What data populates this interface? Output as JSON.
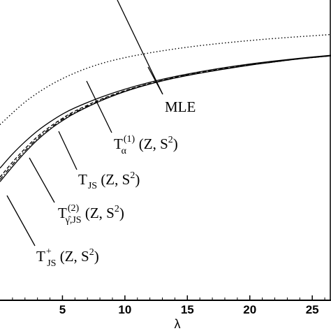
{
  "chart_data": {
    "type": "line",
    "title": "",
    "xlabel": "λ",
    "ylabel": "",
    "xlim": [
      0,
      26.5
    ],
    "ylim": [
      0,
      1.0
    ],
    "x_ticks": [
      5,
      10,
      15,
      20,
      25
    ],
    "x_tick_labels": [
      "5",
      "10",
      "15",
      "20",
      "25"
    ],
    "grid": false,
    "legend": "none",
    "series": [
      {
        "key": "mle",
        "style": "dotted",
        "x": [
          0,
          2,
          4,
          6,
          8,
          10,
          12,
          14,
          16,
          18,
          20,
          22,
          24,
          26.5
        ],
        "y": [
          0.585,
          0.66,
          0.716,
          0.757,
          0.787,
          0.808,
          0.824,
          0.837,
          0.848,
          0.857,
          0.865,
          0.872,
          0.878,
          0.885
        ]
      },
      {
        "key": "t_alpha",
        "style": "solid",
        "x": [
          0,
          1,
          2,
          3,
          4,
          5,
          6,
          8,
          10,
          12,
          14,
          16,
          18,
          20,
          22,
          24,
          26.5
        ],
        "y": [
          0.44,
          0.487,
          0.528,
          0.564,
          0.594,
          0.62,
          0.641,
          0.675,
          0.703,
          0.726,
          0.745,
          0.761,
          0.775,
          0.787,
          0.797,
          0.806,
          0.816
        ]
      },
      {
        "key": "t_js",
        "style": "dashed",
        "x": [
          0,
          1,
          2,
          3,
          4,
          5,
          6,
          8,
          10,
          12,
          14,
          16,
          18,
          20,
          22,
          24,
          26.5
        ],
        "y": [
          0.41,
          0.46,
          0.505,
          0.545,
          0.578,
          0.606,
          0.63,
          0.668,
          0.698,
          0.722,
          0.742,
          0.758,
          0.772,
          0.785,
          0.795,
          0.805,
          0.815
        ]
      },
      {
        "key": "t_gamma_js",
        "style": "dashdot",
        "x": [
          0,
          1,
          2,
          3,
          4,
          5,
          6,
          8,
          10,
          12,
          14,
          16,
          18,
          20,
          22,
          24,
          26.5
        ],
        "y": [
          0.402,
          0.452,
          0.498,
          0.539,
          0.573,
          0.602,
          0.626,
          0.665,
          0.696,
          0.721,
          0.741,
          0.757,
          0.771,
          0.784,
          0.794,
          0.804,
          0.814
        ]
      },
      {
        "key": "t_js_plus",
        "style": "solid",
        "x": [
          0,
          1,
          2,
          3,
          4,
          5,
          6,
          8,
          10,
          12,
          14,
          16,
          18,
          20,
          22,
          24,
          26.5
        ],
        "y": [
          0.395,
          0.445,
          0.492,
          0.534,
          0.569,
          0.598,
          0.623,
          0.663,
          0.695,
          0.72,
          0.74,
          0.756,
          0.77,
          0.783,
          0.794,
          0.804,
          0.814
        ]
      }
    ],
    "annotations": [
      {
        "key": "mle",
        "text": "MLE"
      },
      {
        "key": "t_alpha",
        "text_main": "T",
        "sub": "α",
        "sup": "(1)",
        "args": "(Z, S",
        "arg_sup": "2",
        "close": ")"
      },
      {
        "key": "t_js",
        "text_main": "T",
        "sub": "JS",
        "sup": "",
        "args": "(Z, S",
        "arg_sup": "2",
        "close": ")"
      },
      {
        "key": "t_gamma_js",
        "text_main": "T",
        "sub": "γ̂,JS",
        "sup": "(2)",
        "args": "(Z, S",
        "arg_sup": "2",
        "close": ")"
      },
      {
        "key": "t_js_plus",
        "text_main": "T",
        "sub": "JS",
        "sup": "+",
        "args": "(Z, S",
        "arg_sup": "2",
        "close": ")"
      }
    ],
    "extra_line": {
      "note_key": "upper-left leader"
    }
  }
}
